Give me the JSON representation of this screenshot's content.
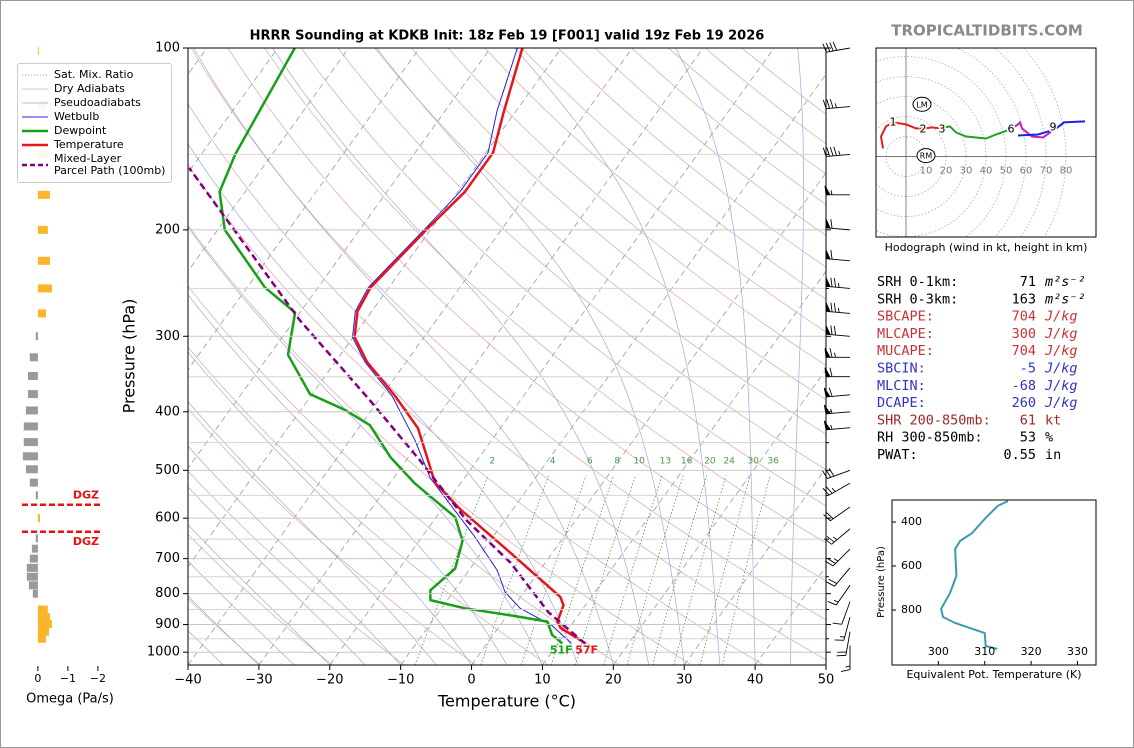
{
  "chart_data": [
    {
      "type": "skewt",
      "title": "HRRR Sounding at KDKB Init: 18z Feb 19 [F001] valid 19z Feb 19 2026",
      "xlabel": "Temperature (°C)",
      "ylabel": "Pressure (hPa)",
      "xlim": [
        -40,
        50
      ],
      "xticks": [
        {
          "value": -40,
          "label": "−40"
        },
        {
          "value": -30,
          "label": "−30"
        },
        {
          "value": -20,
          "label": "−20"
        },
        {
          "value": -10,
          "label": "−10"
        },
        0,
        10,
        20,
        30,
        40,
        50
      ],
      "ylim": [
        1050,
        100
      ],
      "log_y": true,
      "yticks": [
        100,
        200,
        300,
        400,
        500,
        600,
        700,
        800,
        900,
        1000
      ],
      "minor_yticks": [
        150,
        250,
        350,
        450,
        550,
        650,
        750,
        850,
        950
      ],
      "grid": true,
      "legend": "upper left",
      "mixing_ratios": [
        2,
        4,
        6,
        8,
        10,
        13,
        16,
        20,
        24,
        30,
        36
      ],
      "background_lines": [
        {
          "name": "Sat. Mix. Ratio",
          "color": "#4a9a4a",
          "dash": true
        },
        {
          "name": "Dry Adiabats",
          "color": "#e0a4a4"
        },
        {
          "name": "Pseudoadiabats",
          "color": "#a4a4e4"
        }
      ],
      "series": [
        {
          "name": "Wetbulb",
          "color": "#2020e0",
          "width": 1,
          "pressure": [
            967,
            903,
            846,
            795,
            732,
            645,
            515,
            446,
            376,
            331,
            301,
            273,
            249,
            198,
            173,
            149,
            127,
            100
          ],
          "values": [
            11.9,
            7.3,
            1.1,
            -2.7,
            -6,
            -12.5,
            -24.8,
            -30.8,
            -38.6,
            -45.8,
            -50.1,
            -52.3,
            -52.9,
            -50.8,
            -49.7,
            -49.7,
            -52.7,
            -56.2
          ]
        },
        {
          "name": "Dewpoint",
          "color": "#17a017",
          "width": 2.5,
          "pressure": [
            967,
            936,
            890,
            871,
            846,
            820,
            790,
            727,
            654,
            598,
            526,
            476,
            421,
            397,
            374,
            322,
            274,
            249,
            200,
            173,
            150,
            100
          ],
          "values": [
            10.6,
            8.3,
            6.3,
            1.1,
            -6.7,
            -12.4,
            -13.4,
            -12.1,
            -13.9,
            -17.3,
            -26.4,
            -32.5,
            -38.7,
            -43.8,
            -50.3,
            -57.4,
            -60.7,
            -67.5,
            -79,
            -83.6,
            -85.2,
            -87.6
          ]
        },
        {
          "name": "Temperature",
          "color": "#e8141c",
          "width": 2.5,
          "pressure": [
            967,
            912,
            890,
            836,
            810,
            673,
            581,
            524,
            473,
            426,
            376,
            331,
            301,
            273,
            249,
            198,
            173,
            149,
            127,
            100
          ],
          "values": [
            13.9,
            8.8,
            7.7,
            6.9,
            5.6,
            -7.1,
            -17.3,
            -23.7,
            -27.6,
            -31.6,
            -38.2,
            -45.5,
            -49.8,
            -52,
            -52.6,
            -50.5,
            -49,
            -49,
            -51.7,
            -55.5
          ]
        },
        {
          "name": "Mixed-Layer\nParcel Path (100mb)",
          "color": "#800080",
          "width": 2.5,
          "dash": true,
          "pressure": [
            967,
            859,
            711,
            605,
            481,
            383,
            282,
            158
          ],
          "values": [
            13.8,
            5.5,
            -4.9,
            -15.4,
            -28.1,
            -41.2,
            -59.3,
            -90.3
          ]
        }
      ],
      "surface_labels": {
        "dewpoint": "51F",
        "temperature": "57F"
      },
      "wind_barbs": {
        "pressure": [
          100,
          125,
          150,
          175,
          200,
          225,
          250,
          275,
          300,
          325,
          350,
          375,
          400,
          425,
          500,
          525,
          575,
          625,
          675,
          725,
          775,
          825,
          875,
          925,
          975
        ],
        "speed": [
          40,
          35,
          45,
          55,
          60,
          60,
          75,
          75,
          70,
          65,
          60,
          60,
          55,
          55,
          30,
          25,
          20,
          25,
          25,
          20,
          15,
          10,
          15,
          20,
          15
        ],
        "direction": [
          260,
          265,
          265,
          270,
          275,
          275,
          275,
          275,
          275,
          270,
          270,
          265,
          265,
          265,
          250,
          240,
          235,
          230,
          225,
          220,
          215,
          200,
          195,
          190,
          180
        ]
      },
      "indices": [
        {
          "label": "SRH 0-1km:",
          "value": 71,
          "unit": "m²s⁻²",
          "color": "#000000"
        },
        {
          "label": "SRH 0-3km:",
          "value": 163,
          "unit": "m²s⁻²",
          "color": "#000000"
        },
        {
          "label": "SBCAPE:",
          "value": 704,
          "unit": "J/kg",
          "color": "#c83232"
        },
        {
          "label": "MLCAPE:",
          "value": 300,
          "unit": "J/kg",
          "color": "#c83232"
        },
        {
          "label": "MUCAPE:",
          "value": 704,
          "unit": "J/kg",
          "color": "#c83232"
        },
        {
          "label": "SBCIN:",
          "value": -5,
          "unit": "J/kg",
          "color": "#3232c8"
        },
        {
          "label": "MLCIN:",
          "value": -68,
          "unit": "J/kg",
          "color": "#3232c8"
        },
        {
          "label": "DCAPE:",
          "value": 260,
          "unit": "J/kg",
          "color": "#3232c8"
        },
        {
          "label": "SHR 200-850mb:",
          "value": 61,
          "unit": "kt",
          "color": "#a02828"
        },
        {
          "label": "RH 300-850mb:",
          "value": 53,
          "unit": "%",
          "color": "#000000"
        },
        {
          "label": "PWAT:",
          "value": 0.55,
          "unit": "in",
          "color": "#000000"
        }
      ],
      "watermark": "TROPICALTIDBITS.COM"
    },
    {
      "type": "bar",
      "orientation": "horizontal",
      "xlabel": "Omega (Pa/s)",
      "xlim": [
        0.53,
        -2.07
      ],
      "xticks": [
        0,
        {
          "value": -1,
          "label": "−1"
        },
        {
          "value": -2,
          "label": "−2"
        }
      ],
      "ylim": [
        1050,
        100
      ],
      "log_y": true,
      "negative_color": "#fbb52a",
      "positive_color": "#9a9a9a",
      "pressure": [
        101,
        124,
        150,
        175,
        200,
        225,
        250,
        275,
        300,
        325,
        349,
        374,
        398,
        423,
        449,
        474,
        498,
        524,
        550,
        600,
        648,
        674,
        700,
        725,
        750,
        775,
        800,
        850,
        875,
        898,
        925,
        950
      ],
      "values": [
        -0.03,
        -0.27,
        -0.4,
        -0.4,
        -0.33,
        -0.4,
        -0.47,
        -0.27,
        0.07,
        0.27,
        0.33,
        0.33,
        0.4,
        0.47,
        0.47,
        0.5,
        0.4,
        0.27,
        0.07,
        -0.07,
        0.07,
        0.2,
        0.27,
        0.37,
        0.37,
        0.3,
        0.17,
        -0.33,
        -0.4,
        -0.47,
        -0.37,
        -0.27
      ],
      "dgz": [
        570,
        632
      ],
      "dgz_label": "DGZ",
      "dgz_color": "#e81010"
    },
    {
      "type": "hodograph",
      "caption": "Hodograph (wind in kt, height in km)",
      "xlim": [
        -15,
        95
      ],
      "ylim": [
        -40,
        54
      ],
      "rings": [
        10,
        20,
        30,
        40,
        50,
        60,
        70,
        80
      ],
      "segments": [
        {
          "color": "#e02020",
          "u": [
            -11.5,
            -12.5,
            -10,
            -6.5,
            0,
            5,
            9.5,
            13,
            17
          ],
          "v": [
            4,
            10,
            15,
            17,
            16,
            14,
            14,
            14.5,
            14
          ]
        },
        {
          "color": "#22a022",
          "u": [
            17,
            22,
            25,
            30,
            40,
            45,
            52
          ],
          "v": [
            14,
            15,
            12,
            10,
            9,
            11,
            13.5
          ]
        },
        {
          "color": "#c020c0",
          "u": [
            52,
            56,
            57,
            58,
            63,
            68.5,
            72,
            74.5
          ],
          "v": [
            13.5,
            16,
            17,
            14,
            10,
            9.5,
            12,
            14
          ]
        },
        {
          "color": "#2020e0",
          "u": [
            56,
            66,
            74.5,
            79,
            89.5
          ],
          "v": [
            10.5,
            11,
            13.5,
            17,
            17.5
          ]
        }
      ],
      "height_labels": [
        1,
        2,
        3,
        6,
        9
      ],
      "height_label_u": [
        -6.5,
        8.5,
        18,
        52.5,
        73.5
      ],
      "height_label_v": [
        17,
        13.5,
        13.5,
        13.5,
        14.5
      ],
      "storm_motions": {
        "labels": [
          "LM",
          "RM"
        ],
        "u": [
          8,
          10
        ],
        "v": [
          26,
          0.5
        ]
      }
    },
    {
      "type": "line",
      "xlabel": "Equivalent Pot. Temperature (K)",
      "ylabel": "Pressure (hPa)",
      "xlim": [
        290,
        334
      ],
      "xticks": [
        300,
        310,
        320,
        330
      ],
      "ylim": [
        1050,
        300
      ],
      "yticks": [
        400,
        600,
        800
      ],
      "color": "#3a9ab0",
      "pressure": [
        977,
        964,
        905,
        859,
        832,
        795,
        723,
        645,
        523,
        486,
        450,
        386,
        327,
        305
      ],
      "values": [
        312.7,
        310.2,
        310,
        303.6,
        301,
        300.6,
        302.5,
        303.9,
        303.6,
        304.7,
        307.3,
        310,
        312.8,
        315
      ]
    }
  ]
}
